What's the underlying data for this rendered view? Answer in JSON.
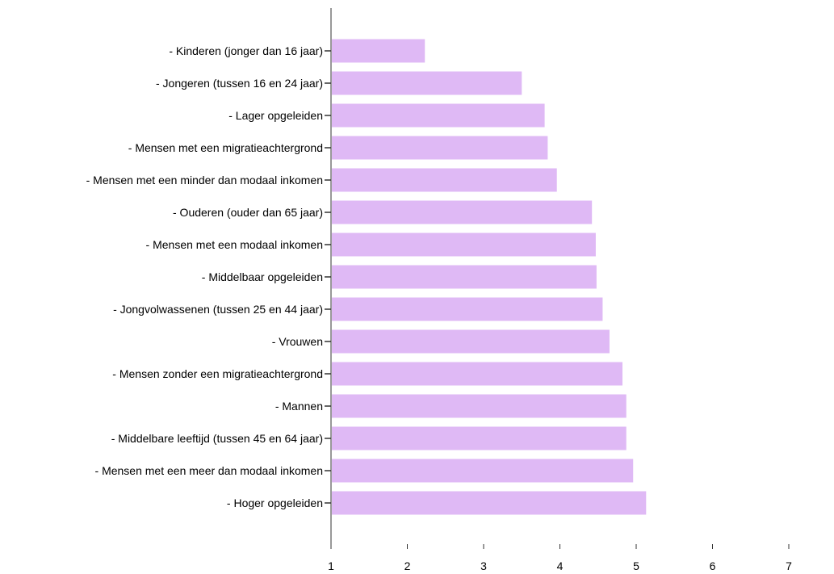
{
  "chart_data": {
    "type": "bar",
    "orientation": "horizontal",
    "title": "",
    "xlabel": "",
    "ylabel": "",
    "categories": [
      "- Kinderen (jonger dan 16 jaar)",
      "- Jongeren (tussen 16 en 24 jaar)",
      "- Lager opgeleiden",
      "- Mensen met een migratieachtergrond",
      "- Mensen met een minder dan modaal inkomen",
      "- Ouderen (ouder dan 65 jaar)",
      "- Mensen met een modaal inkomen",
      "- Middelbaar opgeleiden",
      "- Jongvolwassenen (tussen 25 en 44 jaar)",
      "- Vrouwen",
      "- Mensen zonder een migratieachtergrond",
      "- Mannen",
      "- Middelbare leeftijd (tussen 45 en 64 jaar)",
      "- Mensen met een meer dan modaal inkomen",
      "- Hoger opgeleiden"
    ],
    "values": [
      2.23,
      3.5,
      3.8,
      3.84,
      3.96,
      4.42,
      4.47,
      4.48,
      4.56,
      4.65,
      4.82,
      4.87,
      4.87,
      4.96,
      5.13
    ],
    "xlim": [
      1,
      7.5
    ],
    "xticks": [
      "1",
      "2",
      "3",
      "4",
      "5",
      "6",
      "7"
    ],
    "grid": false,
    "legend": "none",
    "bar_color": "#dfb9f5",
    "axis_color": "#333333"
  }
}
